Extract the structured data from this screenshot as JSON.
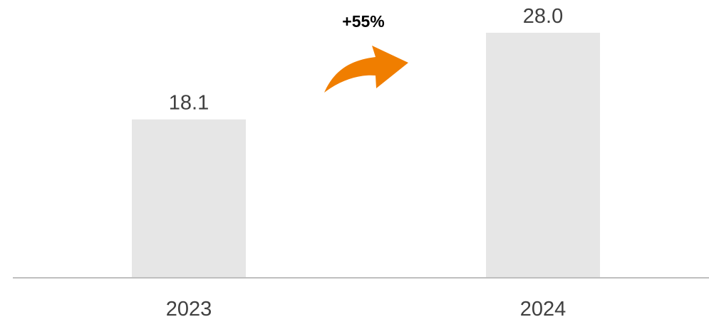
{
  "chart_data": {
    "type": "bar",
    "categories": [
      "2023",
      "2024"
    ],
    "values": [
      18.1,
      28.0
    ],
    "value_labels": [
      "18.1",
      "28.0"
    ],
    "title": "",
    "xlabel": "",
    "ylabel": "",
    "ylim": [
      0,
      30.2
    ],
    "grid": false,
    "legend": "none",
    "annotation": {
      "text": "+55%",
      "arrow_color": "#F07E00"
    },
    "colors": {
      "bar": "#E6E6E6",
      "axis": "#BFBFBF",
      "text": "#404040"
    }
  }
}
